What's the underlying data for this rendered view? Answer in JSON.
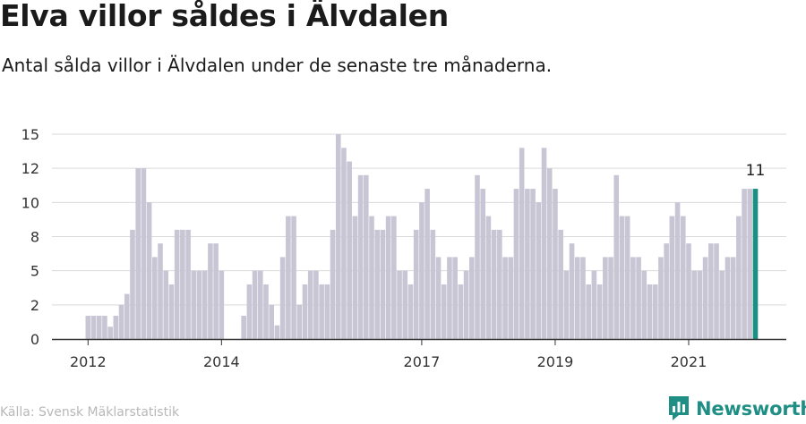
{
  "header": {
    "title": "Elva villor såldes i Älvdalen",
    "subtitle": "Antal sålda villor i Älvdalen under de senaste tre månaderna."
  },
  "footer": {
    "source": "Källa: Svensk Mäklarstatistik",
    "brand": "Newsworthy",
    "brand_icon": "newsworthy-logo-icon"
  },
  "colors": {
    "bar": "#c8c6d4",
    "highlight": "#1a8f84",
    "grid": "#d9d9d9",
    "axis": "#333333",
    "brand": "#1f8f86"
  },
  "chart_data": {
    "type": "bar",
    "y_tick_labels": [
      "0",
      "2",
      "5",
      "8",
      "10",
      "12",
      "15"
    ],
    "y_tick_values": [
      0,
      2.5,
      5,
      7.5,
      10,
      12.5,
      15
    ],
    "ylim": [
      0,
      15
    ],
    "x_tick_labels": [
      "2012",
      "2014",
      "2017",
      "2019",
      "2021"
    ],
    "grid": true,
    "start_month": "2012-01",
    "end_month": "2021-12",
    "values": [
      1.7,
      1.7,
      1.7,
      1.7,
      0.9,
      1.7,
      2.5,
      3.3,
      8,
      12.5,
      12.5,
      10,
      6,
      7,
      5,
      4,
      8,
      8,
      8,
      5,
      5,
      5,
      7,
      7,
      5,
      0,
      0,
      0,
      1.7,
      4,
      5,
      5,
      4,
      2.5,
      1,
      6,
      9,
      9,
      2.5,
      4,
      5,
      5,
      4,
      4,
      8,
      15,
      14,
      13,
      9,
      12,
      12,
      9,
      8,
      8,
      9,
      9,
      5,
      5,
      4,
      8,
      10,
      11,
      8,
      6,
      4,
      6,
      6,
      4,
      5,
      6,
      12,
      11,
      9,
      8,
      8,
      6,
      6,
      11,
      14,
      11,
      11,
      10,
      14,
      12.5,
      11,
      8,
      5,
      7,
      6,
      6,
      4,
      5,
      4,
      6,
      6,
      12,
      9,
      9,
      6,
      6,
      5,
      4,
      4,
      6,
      7,
      9,
      10,
      9,
      7,
      5,
      5,
      6,
      7,
      7,
      5,
      6,
      6,
      9,
      11,
      11,
      11
    ],
    "highlight_last": true,
    "last_label": "11"
  }
}
